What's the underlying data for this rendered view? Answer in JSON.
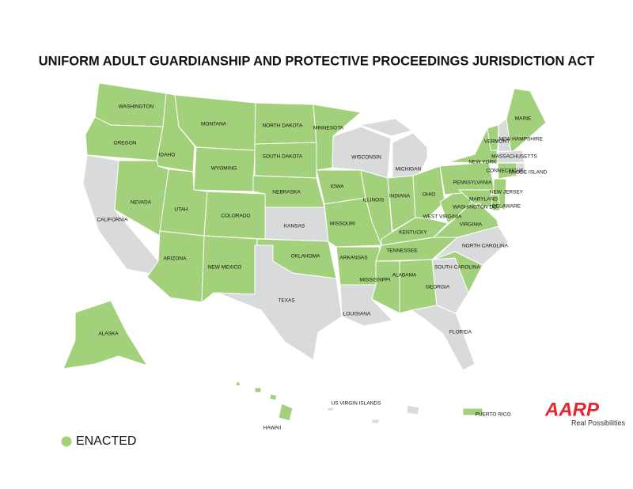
{
  "title": "UNIFORM ADULT GUARDIANSHIP AND PROTECTIVE PROCEEDINGS JURISDICTION ACT",
  "legend": {
    "label": "ENACTED",
    "color": "#a3d07a"
  },
  "other_color": "#d9dadb",
  "logo": {
    "brand": "AARP",
    "tagline": "Real Possibilities"
  },
  "states": [
    {
      "name": "WASHINGTON",
      "enacted": true
    },
    {
      "name": "OREGON",
      "enacted": true
    },
    {
      "name": "CALIFORNIA",
      "enacted": false
    },
    {
      "name": "IDAHO",
      "enacted": true
    },
    {
      "name": "NEVADA",
      "enacted": true
    },
    {
      "name": "MONTANA",
      "enacted": true
    },
    {
      "name": "WYOMING",
      "enacted": true
    },
    {
      "name": "UTAH",
      "enacted": true
    },
    {
      "name": "ARIZONA",
      "enacted": true
    },
    {
      "name": "COLORADO",
      "enacted": true
    },
    {
      "name": "NEW MEXICO",
      "enacted": true
    },
    {
      "name": "NORTH DAKOTA",
      "enacted": true
    },
    {
      "name": "SOUTH DAKOTA",
      "enacted": true
    },
    {
      "name": "NEBRASKA",
      "enacted": true
    },
    {
      "name": "KANSAS",
      "enacted": false
    },
    {
      "name": "OKLAHOMA",
      "enacted": true
    },
    {
      "name": "TEXAS",
      "enacted": false
    },
    {
      "name": "MINNESOTA",
      "enacted": true
    },
    {
      "name": "IOWA",
      "enacted": true
    },
    {
      "name": "MISSOURI",
      "enacted": true
    },
    {
      "name": "ARKANSAS",
      "enacted": true
    },
    {
      "name": "LOUISIANA",
      "enacted": false
    },
    {
      "name": "WISCONSIN",
      "enacted": false
    },
    {
      "name": "ILLINOIS",
      "enacted": true
    },
    {
      "name": "MICHIGAN",
      "enacted": false
    },
    {
      "name": "INDIANA",
      "enacted": true
    },
    {
      "name": "OHIO",
      "enacted": true
    },
    {
      "name": "KENTUCKY",
      "enacted": true
    },
    {
      "name": "TENNESSEE",
      "enacted": true
    },
    {
      "name": "MISSISSIPPI",
      "enacted": true
    },
    {
      "name": "ALABAMA",
      "enacted": true
    },
    {
      "name": "GEORGIA",
      "enacted": false
    },
    {
      "name": "FLORIDA",
      "enacted": false
    },
    {
      "name": "SOUTH CAROLINA",
      "enacted": true
    },
    {
      "name": "NORTH CAROLINA",
      "enacted": false
    },
    {
      "name": "VIRGINIA",
      "enacted": true
    },
    {
      "name": "WEST VIRGINIA",
      "enacted": true
    },
    {
      "name": "PENNSYLVANIA",
      "enacted": true
    },
    {
      "name": "NEW YORK",
      "enacted": true
    },
    {
      "name": "VERMONT",
      "enacted": true
    },
    {
      "name": "NEW HAMPSHIRE",
      "enacted": false
    },
    {
      "name": "MAINE",
      "enacted": true
    },
    {
      "name": "MASSACHUSETTS",
      "enacted": false
    },
    {
      "name": "RHODE ISLAND",
      "enacted": false
    },
    {
      "name": "CONNECTICUT",
      "enacted": true
    },
    {
      "name": "NEW JERSEY",
      "enacted": true
    },
    {
      "name": "DELAWARE",
      "enacted": true
    },
    {
      "name": "MARYLAND",
      "enacted": true
    },
    {
      "name": "WASHINGTON DC",
      "enacted": true
    },
    {
      "name": "ALASKA",
      "enacted": true
    },
    {
      "name": "HAWAII",
      "enacted": true
    },
    {
      "name": "US VIRGIN ISLANDS",
      "enacted": false
    },
    {
      "name": "PUERTO RICO",
      "enacted": true
    }
  ]
}
